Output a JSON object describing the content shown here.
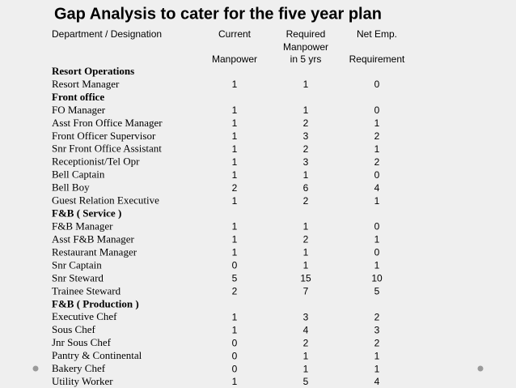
{
  "title": "Gap Analysis to cater for the five year plan",
  "header": {
    "department": "Department / Designation",
    "current": [
      "Current",
      "Manpower"
    ],
    "required": [
      "Required",
      "Manpower",
      "in 5 yrs"
    ],
    "net": [
      "Net Emp.",
      "Requirement"
    ]
  },
  "sections": [
    {
      "name": "Resort Operations",
      "rows": [
        [
          "Resort Manager",
          1,
          1,
          0
        ]
      ]
    },
    {
      "name": "Front office",
      "rows": [
        [
          "FO Manager",
          1,
          1,
          0
        ],
        [
          "Asst Fron Office Manager",
          1,
          2,
          1
        ],
        [
          "Front Officer Supervisor",
          1,
          3,
          2
        ],
        [
          "Snr Front Office Assistant",
          1,
          2,
          1
        ],
        [
          "Receptionist/Tel Opr",
          1,
          3,
          2
        ],
        [
          "Bell Captain",
          1,
          1,
          0
        ],
        [
          "Bell Boy",
          2,
          6,
          4
        ],
        [
          "Guest Relation Executive",
          1,
          2,
          1
        ]
      ]
    },
    {
      "name": "F&B ( Service )",
      "rows": [
        [
          "F&B Manager",
          1,
          1,
          0
        ],
        [
          "Asst F&B Manager",
          1,
          2,
          1
        ],
        [
          "Restaurant Manager",
          1,
          1,
          0
        ],
        [
          "Snr Captain",
          0,
          1,
          1
        ],
        [
          "Snr Steward",
          5,
          15,
          10
        ],
        [
          "Trainee Steward",
          2,
          7,
          5
        ]
      ]
    },
    {
      "name": "F&B ( Production )",
      "rows": [
        [
          "Executive Chef",
          1,
          3,
          2
        ],
        [
          "Sous Chef",
          1,
          4,
          3
        ],
        [
          "Jnr Sous Chef",
          0,
          2,
          2
        ],
        [
          "Pantry & Continental",
          0,
          1,
          1
        ],
        [
          "Bakery Chef",
          0,
          1,
          1
        ],
        [
          "Utility Worker",
          1,
          5,
          4
        ]
      ]
    }
  ]
}
